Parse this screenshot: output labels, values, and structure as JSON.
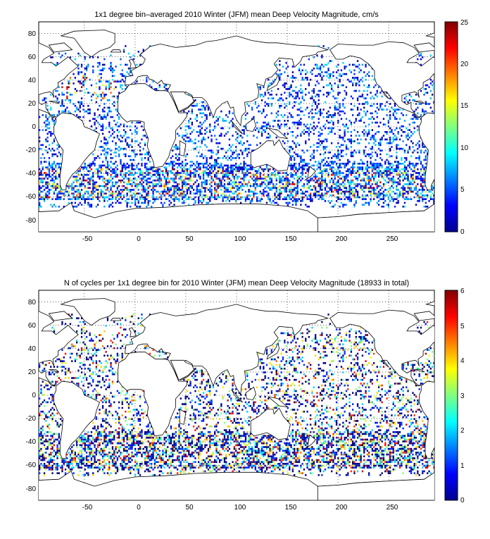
{
  "panels": [
    {
      "title": "1x1 degree bin–averaged 2010 Winter (JFM) mean Deep Velocity Magnitude, cm/s",
      "colorbar_ticks": [
        "0",
        "5",
        "10",
        "15",
        "20",
        "25"
      ],
      "colorbar_range": [
        0,
        25
      ],
      "x_ticks": [
        "-50",
        "0",
        "50",
        "100",
        "150",
        "200",
        "250"
      ],
      "y_ticks": [
        "80",
        "60",
        "40",
        "20",
        "0",
        "-20",
        "-40",
        "-60",
        "-80"
      ]
    },
    {
      "title": "N of cycles per 1x1 degree bin for 2010 Winter (JFM) mean Deep Velocity Magnitude (18933 in total)",
      "colorbar_ticks": [
        "0",
        "1",
        "2",
        "3",
        "4",
        "5",
        "6"
      ],
      "colorbar_range": [
        0,
        6
      ],
      "x_ticks": [
        "-50",
        "0",
        "50",
        "100",
        "150",
        "200",
        "250"
      ],
      "y_ticks": [
        "80",
        "60",
        "40",
        "20",
        "0",
        "-20",
        "-40",
        "-60",
        "-80"
      ]
    }
  ],
  "map_extent": {
    "lon": [
      -95,
      295
    ],
    "lat": [
      -90,
      90
    ]
  },
  "colormap": "jet"
}
